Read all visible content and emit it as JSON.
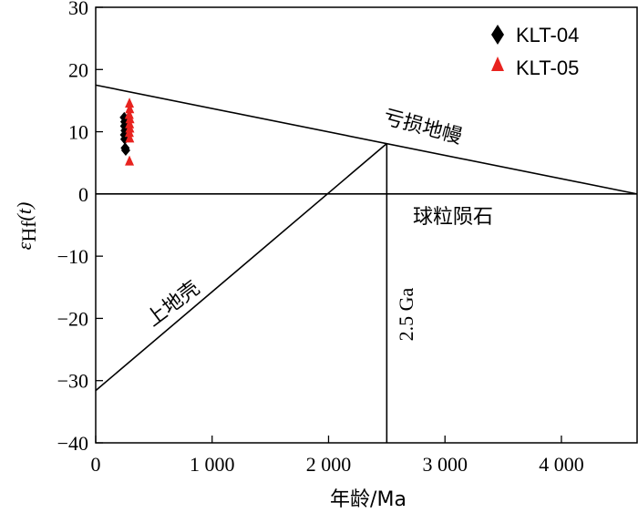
{
  "chart_data": {
    "type": "scatter",
    "title": "",
    "xlabel": "年龄/Ma",
    "ylabel": {
      "epsilon": "ε",
      "sub": "Hf",
      "suffix": "(t)"
    },
    "xlim": [
      0,
      4650
    ],
    "ylim": [
      -40,
      30
    ],
    "x_ticks": [
      0,
      1000,
      2000,
      3000,
      4000
    ],
    "x_tick_labels": [
      "0",
      "1 000",
      "2 000",
      "3 000",
      "4 000"
    ],
    "y_ticks": [
      30,
      20,
      10,
      0,
      -10,
      -20,
      -30,
      -40
    ],
    "y_tick_labels": [
      "30",
      "20",
      "10",
      "0",
      "−10",
      "−20",
      "−30",
      "−40"
    ],
    "series": [
      {
        "name": "KLT-04",
        "marker": "diamond",
        "color": "#000000",
        "points": [
          {
            "x": 245,
            "y": 12.3
          },
          {
            "x": 250,
            "y": 11.6
          },
          {
            "x": 248,
            "y": 10.9
          },
          {
            "x": 252,
            "y": 10.2
          },
          {
            "x": 247,
            "y": 9.5
          },
          {
            "x": 250,
            "y": 8.8
          },
          {
            "x": 253,
            "y": 7.4
          },
          {
            "x": 258,
            "y": 7.0
          }
        ]
      },
      {
        "name": "KLT-05",
        "marker": "triangle",
        "color": "#e8231f",
        "points": [
          {
            "x": 290,
            "y": 14.6
          },
          {
            "x": 292,
            "y": 13.7
          },
          {
            "x": 288,
            "y": 12.8
          },
          {
            "x": 294,
            "y": 12.1
          },
          {
            "x": 291,
            "y": 11.3
          },
          {
            "x": 293,
            "y": 10.6
          },
          {
            "x": 289,
            "y": 9.9
          },
          {
            "x": 292,
            "y": 9.0
          },
          {
            "x": 290,
            "y": 5.3
          }
        ]
      }
    ],
    "reference_lines": [
      {
        "name": "depleted-mantle-line",
        "x1": 0,
        "y1": 17.5,
        "x2": 4650,
        "y2": 0
      },
      {
        "name": "chondrite-line",
        "x1": 0,
        "y1": 0,
        "x2": 4650,
        "y2": 0
      },
      {
        "name": "upper-crust-line",
        "x1": 0,
        "y1": -31.6,
        "x2": 2500,
        "y2": 8.1
      },
      {
        "name": "age-2.5ga-line",
        "x1": 2500,
        "y1": 8.1,
        "x2": 2500,
        "y2": -40
      }
    ],
    "annotations": {
      "depleted_mantle": "亏损地幔",
      "chondrite": "球粒陨石",
      "upper_crust": "上地壳",
      "age_marker": "2.5 Ga"
    },
    "legend": {
      "position": "top-right",
      "entries": [
        "KLT-04",
        "KLT-05"
      ]
    }
  }
}
